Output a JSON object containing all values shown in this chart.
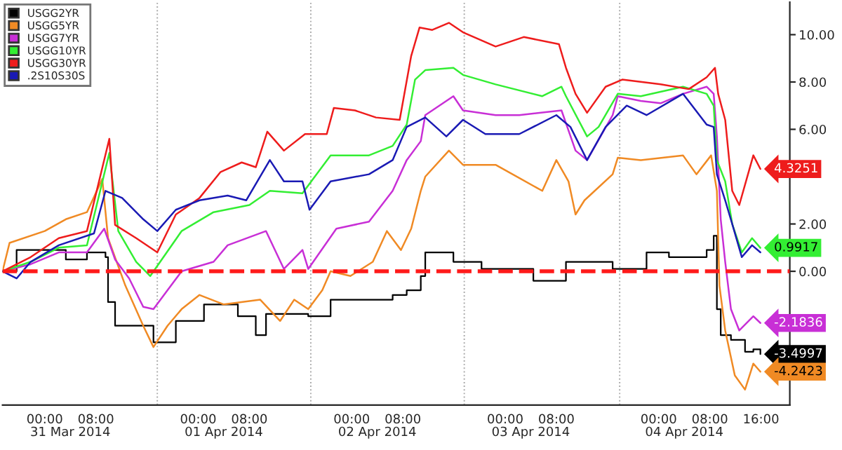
{
  "chart_data": {
    "type": "line",
    "xlim": [
      "2014-03-30T17:24",
      "2014-04-04T20:30"
    ],
    "ylim": [
      -5.65,
      11.37
    ],
    "xticks": [
      {
        "value": "2014-03-31T00:00",
        "label": "00:00"
      },
      {
        "value": "2014-03-31T08:00",
        "label": "08:00"
      },
      {
        "value": "2014-04-01T00:00",
        "label": "00:00"
      },
      {
        "value": "2014-04-01T08:00",
        "label": "08:00"
      },
      {
        "value": "2014-04-02T00:00",
        "label": "00:00"
      },
      {
        "value": "2014-04-02T08:00",
        "label": "08:00"
      },
      {
        "value": "2014-04-03T00:00",
        "label": "00:00"
      },
      {
        "value": "2014-04-03T08:00",
        "label": "08:00"
      },
      {
        "value": "2014-04-04T00:00",
        "label": "00:00"
      },
      {
        "value": "2014-04-04T08:00",
        "label": "08:00"
      },
      {
        "value": "2014-04-04T16:00",
        "label": "16:00"
      }
    ],
    "yticks": [
      {
        "value": -4,
        "label": null
      },
      {
        "value": -2,
        "label": null
      },
      {
        "value": 0,
        "label": "0.00"
      },
      {
        "value": 2,
        "label": "2.00"
      },
      {
        "value": 4,
        "label": null
      },
      {
        "value": 6,
        "label": "6.00"
      },
      {
        "value": 8,
        "label": "8.00"
      },
      {
        "value": 10,
        "label": "10.00"
      }
    ],
    "annotations": [
      "31 Mar 2014",
      "01 Apr 2014",
      "02 Apr 2014",
      "03 Apr 2014",
      "04 Apr 2014"
    ],
    "legend": "top left",
    "ref_lines": [
      {
        "axis": "y",
        "value": 0,
        "color": "#ff1a1a",
        "line_style": "dashed"
      },
      {
        "axis": "x",
        "value": "2014-03-31T17:36",
        "color": "#aaaaaa",
        "line_style": "dotted"
      },
      {
        "axis": "x",
        "value": "2014-04-01T17:36",
        "color": "#aaaaaa",
        "line_style": "dotted"
      },
      {
        "axis": "x",
        "value": "2014-04-02T17:36",
        "color": "#aaaaaa",
        "line_style": "dotted"
      },
      {
        "axis": "x",
        "value": "2014-04-03T17:54",
        "color": "#aaaaaa",
        "line_style": "dotted"
      }
    ],
    "series": [
      {
        "name": "USGG2YR",
        "type": "step",
        "color": "#000000",
        "x": [
          "2014-03-30T17:24",
          "2014-03-30T19:36",
          "2014-03-31T02:12",
          "2014-03-31T03:18",
          "2014-03-31T06:36",
          "2014-03-31T09:30",
          "2014-03-31T09:54",
          "2014-03-31T11:00",
          "2014-03-31T17:00",
          "2014-03-31T20:30",
          "2014-04-01T00:54",
          "2014-04-01T06:12",
          "2014-04-01T09:00",
          "2014-04-01T10:36",
          "2014-04-01T17:12",
          "2014-04-01T20:42",
          "2014-04-02T06:24",
          "2014-04-02T08:36",
          "2014-04-02T10:48",
          "2014-04-02T11:30",
          "2014-04-02T15:54",
          "2014-04-02T20:18",
          "2014-04-03T04:24",
          "2014-04-03T09:30",
          "2014-04-03T16:48",
          "2014-04-03T22:06",
          "2014-04-04T01:36",
          "2014-04-04T07:30",
          "2014-04-04T08:36",
          "2014-04-04T09:06",
          "2014-04-04T09:42",
          "2014-04-04T11:18",
          "2014-04-04T13:30",
          "2014-04-04T14:48",
          "2014-04-04T15:54"
        ],
        "values": [
          0,
          0.9,
          0.9,
          0.5,
          0.8,
          0.6,
          -1.3,
          -2.3,
          -3.0,
          -2.1,
          -1.4,
          -1.9,
          -2.7,
          -1.8,
          -1.9,
          -1.2,
          -1.0,
          -0.8,
          -0.2,
          0.8,
          0.4,
          0.1,
          -0.4,
          0.4,
          0.1,
          0.8,
          0.6,
          0.9,
          1.5,
          -1.6,
          -2.7,
          -2.9,
          -3.4,
          -3.3,
          -3.4997
        ],
        "value_labels": [
          null,
          null,
          null,
          null,
          null,
          null,
          null,
          null,
          null,
          null,
          null,
          null,
          null,
          null,
          null,
          null,
          null,
          null,
          null,
          null,
          null,
          null,
          null,
          null,
          null,
          null,
          null,
          null,
          null,
          null,
          null,
          null,
          null,
          null,
          "-3.4997"
        ]
      },
      {
        "name": "USGG5YR",
        "color": "#f08a24",
        "x": [
          "2014-03-30T17:24",
          "2014-03-30T18:30",
          "2014-03-31T00:00",
          "2014-03-31T03:18",
          "2014-03-31T06:36",
          "2014-03-31T09:00",
          "2014-03-31T09:54",
          "2014-03-31T12:36",
          "2014-03-31T15:24",
          "2014-03-31T17:00",
          "2014-03-31T19:12",
          "2014-03-31T21:24",
          "2014-04-01T00:12",
          "2014-04-01T04:00",
          "2014-04-01T09:42",
          "2014-04-01T12:48",
          "2014-04-01T15:00",
          "2014-04-01T17:12",
          "2014-04-01T19:24",
          "2014-04-01T20:42",
          "2014-04-01T23:48",
          "2014-04-02T03:18",
          "2014-04-02T05:30",
          "2014-04-02T07:42",
          "2014-04-02T09:18",
          "2014-04-02T10:48",
          "2014-04-02T11:30",
          "2014-04-02T15:12",
          "2014-04-02T17:24",
          "2014-04-02T22:30",
          "2014-04-03T05:48",
          "2014-04-03T08:00",
          "2014-04-03T09:54",
          "2014-04-03T11:00",
          "2014-04-03T12:24",
          "2014-04-03T16:48",
          "2014-04-03T17:36",
          "2014-04-03T21:12",
          "2014-04-04T03:48",
          "2014-04-04T05:54",
          "2014-04-04T08:12",
          "2014-04-04T09:06",
          "2014-04-04T09:30",
          "2014-04-04T10:24",
          "2014-04-04T11:54",
          "2014-04-04T13:30",
          "2014-04-04T14:48",
          "2014-04-04T15:54"
        ],
        "values": [
          0,
          1.2,
          1.7,
          2.2,
          2.5,
          3.9,
          1.4,
          -0.6,
          -2.3,
          -3.2,
          -2.3,
          -1.6,
          -1.0,
          -1.4,
          -1.2,
          -2.1,
          -1.2,
          -1.6,
          -0.8,
          0,
          -0.2,
          0.4,
          1.7,
          0.9,
          1.8,
          3.4,
          4.0,
          5.1,
          4.5,
          4.5,
          3.4,
          4.7,
          3.8,
          2.4,
          3.0,
          4.1,
          4.8,
          4.7,
          4.9,
          4.1,
          4.9,
          3.4,
          -0.6,
          -2.5,
          -4.4,
          -5.0,
          -3.9,
          -4.2423
        ],
        "value_labels": [
          null,
          null,
          null,
          null,
          null,
          null,
          null,
          null,
          null,
          null,
          null,
          null,
          null,
          null,
          null,
          null,
          null,
          null,
          null,
          null,
          null,
          null,
          null,
          null,
          null,
          null,
          null,
          null,
          null,
          null,
          null,
          null,
          null,
          null,
          null,
          null,
          null,
          null,
          null,
          null,
          null,
          null,
          null,
          null,
          null,
          null,
          null,
          "-4.2423"
        ]
      },
      {
        "name": "USGG7YR",
        "color": "#c82fd6",
        "x": [
          "2014-03-30T17:24",
          "2014-03-30T21:48",
          "2014-03-31T02:12",
          "2014-03-31T06:36",
          "2014-03-31T09:18",
          "2014-03-31T11:00",
          "2014-03-31T13:12",
          "2014-03-31T15:24",
          "2014-03-31T17:00",
          "2014-03-31T19:12",
          "2014-03-31T21:24",
          "2014-04-01T02:24",
          "2014-04-01T04:36",
          "2014-04-01T10:36",
          "2014-04-01T13:24",
          "2014-04-01T16:18",
          "2014-04-01T17:12",
          "2014-04-01T21:36",
          "2014-04-02T02:42",
          "2014-04-02T06:24",
          "2014-04-02T08:36",
          "2014-04-02T10:48",
          "2014-04-02T11:30",
          "2014-04-02T15:54",
          "2014-04-02T17:24",
          "2014-04-02T22:30",
          "2014-04-03T02:12",
          "2014-04-03T08:48",
          "2014-04-03T11:00",
          "2014-04-03T12:48",
          "2014-04-03T16:48",
          "2014-04-03T17:36",
          "2014-04-03T21:12",
          "2014-04-04T00:18",
          "2014-04-04T03:48",
          "2014-04-04T07:30",
          "2014-04-04T08:36",
          "2014-04-04T09:06",
          "2014-04-04T09:42",
          "2014-04-04T10:24",
          "2014-04-04T11:18",
          "2014-04-04T12:36",
          "2014-04-04T14:48",
          "2014-04-04T15:54"
        ],
        "values": [
          0,
          0.3,
          0.8,
          0.8,
          1.8,
          0.5,
          -0.3,
          -1.5,
          -1.6,
          -0.8,
          0,
          0.4,
          1.1,
          1.7,
          0.1,
          0.9,
          0.1,
          1.8,
          2.1,
          3.4,
          4.7,
          5.5,
          6.6,
          7.4,
          6.8,
          6.6,
          6.6,
          6.8,
          5.1,
          4.7,
          6.6,
          7.4,
          7.2,
          7.1,
          7.5,
          7.8,
          7.5,
          5.7,
          2.2,
          0.4,
          -1.6,
          -2.5,
          -1.9,
          -2.1836
        ],
        "value_labels": [
          null,
          null,
          null,
          null,
          null,
          null,
          null,
          null,
          null,
          null,
          null,
          null,
          null,
          null,
          null,
          null,
          null,
          null,
          null,
          null,
          null,
          null,
          null,
          null,
          null,
          null,
          null,
          null,
          null,
          null,
          null,
          null,
          null,
          null,
          null,
          null,
          null,
          null,
          null,
          null,
          null,
          null,
          null,
          "-2.1836"
        ]
      },
      {
        "name": "USGG10YR",
        "color": "#33ee33",
        "x": [
          "2014-03-30T17:24",
          "2014-03-30T21:48",
          "2014-03-31T02:12",
          "2014-03-31T06:36",
          "2014-03-31T10:06",
          "2014-03-31T11:30",
          "2014-03-31T14:18",
          "2014-03-31T16:30",
          "2014-03-31T18:18",
          "2014-03-31T21:24",
          "2014-04-01T02:24",
          "2014-04-01T08:00",
          "2014-04-01T11:12",
          "2014-04-01T16:18",
          "2014-04-01T20:42",
          "2014-04-02T02:42",
          "2014-04-02T06:24",
          "2014-04-02T08:36",
          "2014-04-02T09:54",
          "2014-04-02T11:30",
          "2014-04-02T15:54",
          "2014-04-02T17:24",
          "2014-04-02T22:30",
          "2014-04-03T05:48",
          "2014-04-03T08:48",
          "2014-04-03T09:30",
          "2014-04-03T12:48",
          "2014-04-03T14:36",
          "2014-04-03T17:36",
          "2014-04-03T21:12",
          "2014-04-04T03:48",
          "2014-04-04T07:30",
          "2014-04-04T08:36",
          "2014-04-04T09:06",
          "2014-04-04T10:24",
          "2014-04-04T11:30",
          "2014-04-04T13:00",
          "2014-04-04T14:36",
          "2014-04-04T15:54"
        ],
        "values": [
          0,
          0.4,
          1.0,
          1.1,
          5.0,
          1.7,
          0.4,
          -0.2,
          0.5,
          1.7,
          2.5,
          2.8,
          3.4,
          3.3,
          4.9,
          4.9,
          5.3,
          6.2,
          8.1,
          8.5,
          8.6,
          8.3,
          7.9,
          7.4,
          7.8,
          7.4,
          5.7,
          6.1,
          7.5,
          7.4,
          7.8,
          7.5,
          7.0,
          4.7,
          3.8,
          2.0,
          0.8,
          1.4,
          0.9917
        ],
        "value_labels": [
          null,
          null,
          null,
          null,
          null,
          null,
          null,
          null,
          null,
          null,
          null,
          null,
          null,
          null,
          null,
          null,
          null,
          null,
          null,
          null,
          null,
          null,
          null,
          null,
          null,
          null,
          null,
          null,
          null,
          null,
          null,
          null,
          null,
          null,
          null,
          null,
          null,
          null,
          "0.9917"
        ]
      },
      {
        "name": "USGG30YR",
        "color": "#ee1c1c",
        "x": [
          "2014-03-30T17:24",
          "2014-03-30T21:48",
          "2014-03-31T02:12",
          "2014-03-31T06:36",
          "2014-03-31T10:06",
          "2014-03-31T11:00",
          "2014-03-31T14:18",
          "2014-03-31T17:36",
          "2014-03-31T20:30",
          "2014-04-01T00:12",
          "2014-04-01T03:30",
          "2014-04-01T06:48",
          "2014-04-01T09:00",
          "2014-04-01T10:48",
          "2014-04-01T13:24",
          "2014-04-01T16:42",
          "2014-04-01T20:06",
          "2014-04-01T21:12",
          "2014-04-02T00:30",
          "2014-04-02T03:48",
          "2014-04-02T07:30",
          "2014-04-02T09:18",
          "2014-04-02T10:36",
          "2014-04-02T12:36",
          "2014-04-02T15:12",
          "2014-04-02T17:24",
          "2014-04-02T22:30",
          "2014-04-03T02:54",
          "2014-04-03T08:24",
          "2014-04-03T09:30",
          "2014-04-03T11:00",
          "2014-04-03T12:48",
          "2014-04-03T15:42",
          "2014-04-03T18:18",
          "2014-04-04T00:18",
          "2014-04-04T04:42",
          "2014-04-04T07:30",
          "2014-04-04T08:48",
          "2014-04-04T09:18",
          "2014-04-04T10:24",
          "2014-04-04T11:30",
          "2014-04-04T12:36",
          "2014-04-04T14:48",
          "2014-04-04T15:54"
        ],
        "values": [
          0,
          0.6,
          1.4,
          1.7,
          5.6,
          1.96,
          1.4,
          0.8,
          2.4,
          3.1,
          4.2,
          4.6,
          4.4,
          5.9,
          5.1,
          5.8,
          5.8,
          6.9,
          6.8,
          6.5,
          6.4,
          9.1,
          10.3,
          10.2,
          10.5,
          10.1,
          9.5,
          9.9,
          9.6,
          8.6,
          7.5,
          6.7,
          7.8,
          8.1,
          7.9,
          7.7,
          8.2,
          8.6,
          7.5,
          6.4,
          3.4,
          2.8,
          4.9,
          4.3251
        ],
        "value_labels": [
          null,
          null,
          null,
          null,
          null,
          null,
          null,
          null,
          null,
          null,
          null,
          null,
          null,
          null,
          null,
          null,
          null,
          null,
          null,
          null,
          null,
          null,
          null,
          null,
          null,
          null,
          null,
          null,
          null,
          null,
          null,
          null,
          null,
          null,
          null,
          null,
          null,
          null,
          null,
          null,
          null,
          null,
          null,
          "4.3251"
        ]
      },
      {
        "name": ".2S10S30S",
        "color": "#1a1ab4",
        "x": [
          "2014-03-30T17:24",
          "2014-03-30T19:36",
          "2014-03-30T21:48",
          "2014-03-31T02:12",
          "2014-03-31T07:42",
          "2014-03-31T09:30",
          "2014-03-31T12:06",
          "2014-03-31T15:24",
          "2014-03-31T17:36",
          "2014-03-31T20:30",
          "2014-04-01T00:12",
          "2014-04-01T04:36",
          "2014-04-01T07:30",
          "2014-04-01T11:12",
          "2014-04-01T13:24",
          "2014-04-01T16:18",
          "2014-04-01T17:24",
          "2014-04-01T20:42",
          "2014-04-02T02:42",
          "2014-04-02T06:24",
          "2014-04-02T08:36",
          "2014-04-02T11:30",
          "2014-04-02T14:48",
          "2014-04-02T17:24",
          "2014-04-02T20:54",
          "2014-04-03T02:12",
          "2014-04-03T08:00",
          "2014-04-03T10:12",
          "2014-04-03T12:48",
          "2014-04-03T15:42",
          "2014-04-03T19:00",
          "2014-04-03T22:06",
          "2014-04-04T03:48",
          "2014-04-04T07:30",
          "2014-04-04T08:36",
          "2014-04-04T09:06",
          "2014-04-04T10:24",
          "2014-04-04T11:30",
          "2014-04-04T13:00",
          "2014-04-04T14:36",
          "2014-04-04T15:54"
        ],
        "values": [
          0,
          -0.3,
          0.4,
          1.1,
          1.6,
          3.4,
          3.1,
          2.2,
          1.7,
          2.6,
          3.0,
          3.2,
          3.0,
          4.7,
          3.8,
          3.8,
          2.6,
          3.8,
          4.1,
          4.7,
          6.1,
          6.5,
          5.7,
          6.4,
          5.8,
          5.8,
          6.6,
          6.1,
          4.7,
          6.1,
          7.0,
          6.6,
          7.5,
          6.2,
          6.1,
          4.1,
          3.0,
          2.0,
          0.6,
          1.1,
          0.8
        ]
      }
    ]
  }
}
